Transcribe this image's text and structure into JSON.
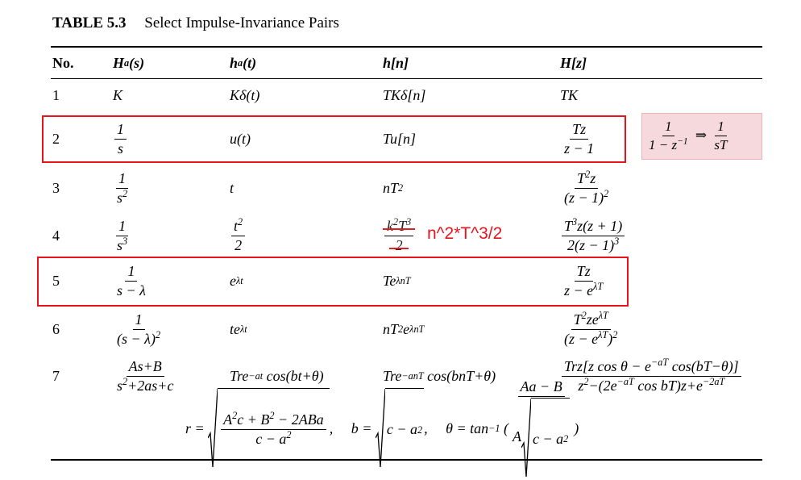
{
  "caption": {
    "label": "TABLE 5.3",
    "title": "Select Impulse-Invariance Pairs"
  },
  "table": {
    "headers": [
      "No.",
      [
        "H",
        {
          "sub": "a"
        },
        "(s)"
      ],
      [
        "h",
        {
          "sub": "a"
        },
        "(t)"
      ],
      "h[n]",
      "H[z]"
    ],
    "rows": [
      [
        "1",
        "K",
        "Kδ(t)",
        "TKδ[n]",
        "TK"
      ],
      [
        "2",
        {
          "num": "1",
          "den": "s"
        },
        "u(t)",
        "Tu[n]",
        {
          "num": "Tz",
          "den": "z − 1"
        }
      ],
      [
        "3",
        {
          "num": "1",
          "den": [
            "s",
            {
              "sup": "2"
            }
          ]
        },
        "t",
        [
          "nT",
          {
            "sup": "2"
          }
        ],
        {
          "num": [
            "T",
            {
              "sup": "2"
            },
            "z"
          ],
          "den": [
            "(z − 1)",
            {
              "sup": "2"
            }
          ]
        }
      ],
      [
        "4",
        {
          "num": "1",
          "den": [
            "s",
            {
              "sup": "3"
            }
          ]
        },
        {
          "num": [
            "t",
            {
              "sup": "2"
            }
          ],
          "den": "2"
        },
        {
          "num": [
            "k",
            {
              "sup": "2"
            },
            "T",
            {
              "sup": "3"
            }
          ],
          "den": "2",
          "struck": true
        },
        {
          "num": [
            "T",
            {
              "sup": "3"
            },
            "z(z + 1)"
          ],
          "den": [
            "2(z − 1)",
            {
              "sup": "3"
            }
          ]
        }
      ],
      [
        "5",
        {
          "num": "1",
          "den": "s − λ"
        },
        [
          "e",
          {
            "sup": "λt"
          }
        ],
        [
          "Te",
          {
            "sup": "λnT"
          }
        ],
        {
          "num": "Tz",
          "den": [
            "z − e",
            {
              "sup": "λT"
            }
          ]
        }
      ],
      [
        "6",
        {
          "num": "1",
          "den": [
            "(s − λ)",
            {
              "sup": "2"
            }
          ]
        },
        [
          "te",
          {
            "sup": "λt"
          }
        ],
        [
          "nT",
          {
            "sup": "2"
          },
          "e",
          {
            "sup": "λnT"
          }
        ],
        {
          "num": [
            "T",
            {
              "sup": "2"
            },
            "ze",
            {
              "sup": "λT"
            }
          ],
          "den": [
            "(z − e",
            {
              "sup": "λT"
            },
            ")",
            {
              "sup": "2"
            }
          ]
        }
      ],
      [
        "7",
        {
          "num": "As+B",
          "den": [
            "s",
            {
              "sup": "2"
            },
            "+2as+c"
          ]
        },
        [
          "Tre",
          {
            "sup": "−at"
          },
          " cos(bt+θ)"
        ],
        [
          "Tre",
          {
            "sup": "−anT"
          },
          " cos(bnT+θ)"
        ],
        {
          "num": [
            "Trz[z cos θ − e",
            {
              "sup": "−aT"
            },
            " cos(bT−θ)]"
          ],
          "den": [
            "z",
            {
              "sup": "2"
            },
            "−(2e",
            {
              "sup": "−aT"
            },
            " cos bT)z+e",
            {
              "sup": "−2aT"
            }
          ]
        }
      ]
    ],
    "footer": [
      "r = ",
      {
        "sqrt": {
          "num": [
            "A",
            {
              "sup": "2"
            },
            "c + B",
            {
              "sup": "2"
            },
            " − 2ABa"
          ],
          "den": [
            "c − a",
            {
              "sup": "2"
            }
          ]
        }
      },
      ",     b = ",
      {
        "sqrt": [
          "c − a",
          {
            "sup": "2"
          }
        ]
      },
      ",     θ = tan",
      {
        "sup": "−1"
      },
      " (",
      {
        "num": "Aa − B",
        "den": [
          "A",
          {
            "sqrt": [
              "c − a",
              {
                "sup": "2"
              }
            ]
          }
        ]
      },
      ")"
    ]
  },
  "annotations": {
    "row4_correction": "n^2*T^3/2",
    "side_note": [
      {
        "num": "1",
        "den": [
          "1 − z",
          {
            "sup": "−1"
          }
        ]
      },
      " ⇒ ",
      {
        "num": "1",
        "den": "sT"
      }
    ]
  }
}
